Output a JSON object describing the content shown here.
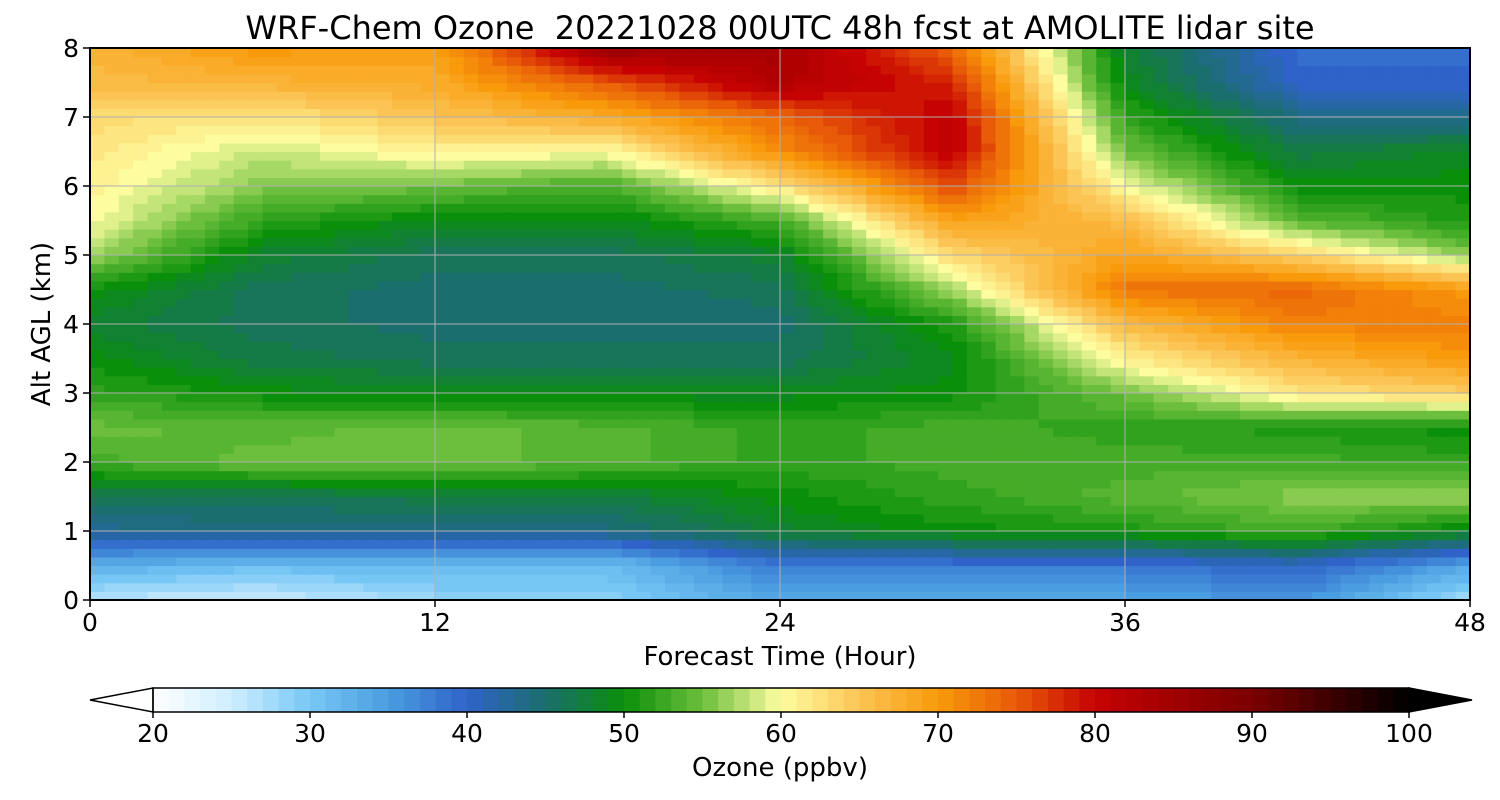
{
  "chart_data": {
    "type": "heatmap",
    "title": "WRF-Chem Ozone  20221028 00UTC 48h fcst at AMOLITE lidar site",
    "xlabel": "Forecast Time (Hour)",
    "ylabel": "Alt AGL (km)",
    "xlim": [
      0,
      48
    ],
    "ylim": [
      0,
      8
    ],
    "x_ticks": [
      0,
      12,
      24,
      36,
      48
    ],
    "y_ticks": [
      0,
      1,
      2,
      3,
      4,
      5,
      6,
      7,
      8
    ],
    "grid": true,
    "x": [
      0,
      6,
      12,
      18,
      24,
      30,
      36,
      42,
      48
    ],
    "y": [
      0,
      0.5,
      1,
      1.5,
      2,
      2.5,
      3,
      3.5,
      4,
      4.5,
      5,
      5.5,
      6,
      6.5,
      7,
      7.5,
      8
    ],
    "z": [
      [
        26,
        25,
        28,
        29,
        34,
        33,
        34,
        36,
        27
      ],
      [
        33,
        31,
        32,
        31,
        38,
        38,
        38,
        40,
        34
      ],
      [
        43,
        44,
        44,
        44,
        48,
        50,
        51,
        53,
        49
      ],
      [
        46,
        46,
        47,
        47,
        50,
        52,
        54,
        56,
        57
      ],
      [
        53,
        55,
        55,
        54,
        52,
        53,
        53,
        53,
        52
      ],
      [
        55,
        54,
        55,
        54,
        52,
        53,
        52,
        51,
        50
      ],
      [
        52,
        50,
        49,
        49,
        49,
        50,
        55,
        62,
        64
      ],
      [
        50,
        47,
        46,
        46,
        46,
        49,
        61,
        67,
        70
      ],
      [
        48,
        46,
        45,
        45,
        45,
        51,
        66,
        72,
        72
      ],
      [
        50,
        46,
        45,
        45,
        46,
        57,
        73,
        74,
        70
      ],
      [
        57,
        48,
        46,
        46,
        48,
        63,
        69,
        64,
        56
      ],
      [
        60,
        52,
        49,
        49,
        53,
        69,
        66,
        54,
        51
      ],
      [
        61,
        56,
        55,
        53,
        62,
        76,
        60,
        50,
        50
      ],
      [
        62,
        58,
        61,
        60,
        71,
        81,
        55,
        47,
        49
      ],
      [
        63,
        62,
        65,
        68,
        74,
        81,
        52,
        44,
        43
      ],
      [
        66,
        67,
        68,
        75,
        83,
        78,
        49,
        40,
        40
      ],
      [
        67,
        70,
        69,
        86,
        84,
        74,
        48,
        39,
        39
      ]
    ],
    "colorbar": {
      "label": "Ozone  (ppbv)",
      "min": 20,
      "max": 100,
      "extend": "both",
      "tick_values": [
        20,
        30,
        40,
        50,
        60,
        70,
        80,
        90,
        100
      ],
      "stops": [
        {
          "v": 20,
          "c": "#ffffff"
        },
        {
          "v": 25,
          "c": "#cfeeff"
        },
        {
          "v": 30,
          "c": "#77c7f5"
        },
        {
          "v": 35,
          "c": "#4a9de0"
        },
        {
          "v": 40,
          "c": "#2f63c9"
        },
        {
          "v": 45,
          "c": "#1b6e6e"
        },
        {
          "v": 50,
          "c": "#0a8f0a"
        },
        {
          "v": 55,
          "c": "#6cbf3c"
        },
        {
          "v": 60,
          "c": "#fdfda0"
        },
        {
          "v": 65,
          "c": "#fcc454"
        },
        {
          "v": 70,
          "c": "#f89a0a"
        },
        {
          "v": 75,
          "c": "#e85a08"
        },
        {
          "v": 80,
          "c": "#c70202"
        },
        {
          "v": 90,
          "c": "#7a0000"
        },
        {
          "v": 100,
          "c": "#000000"
        }
      ]
    }
  }
}
